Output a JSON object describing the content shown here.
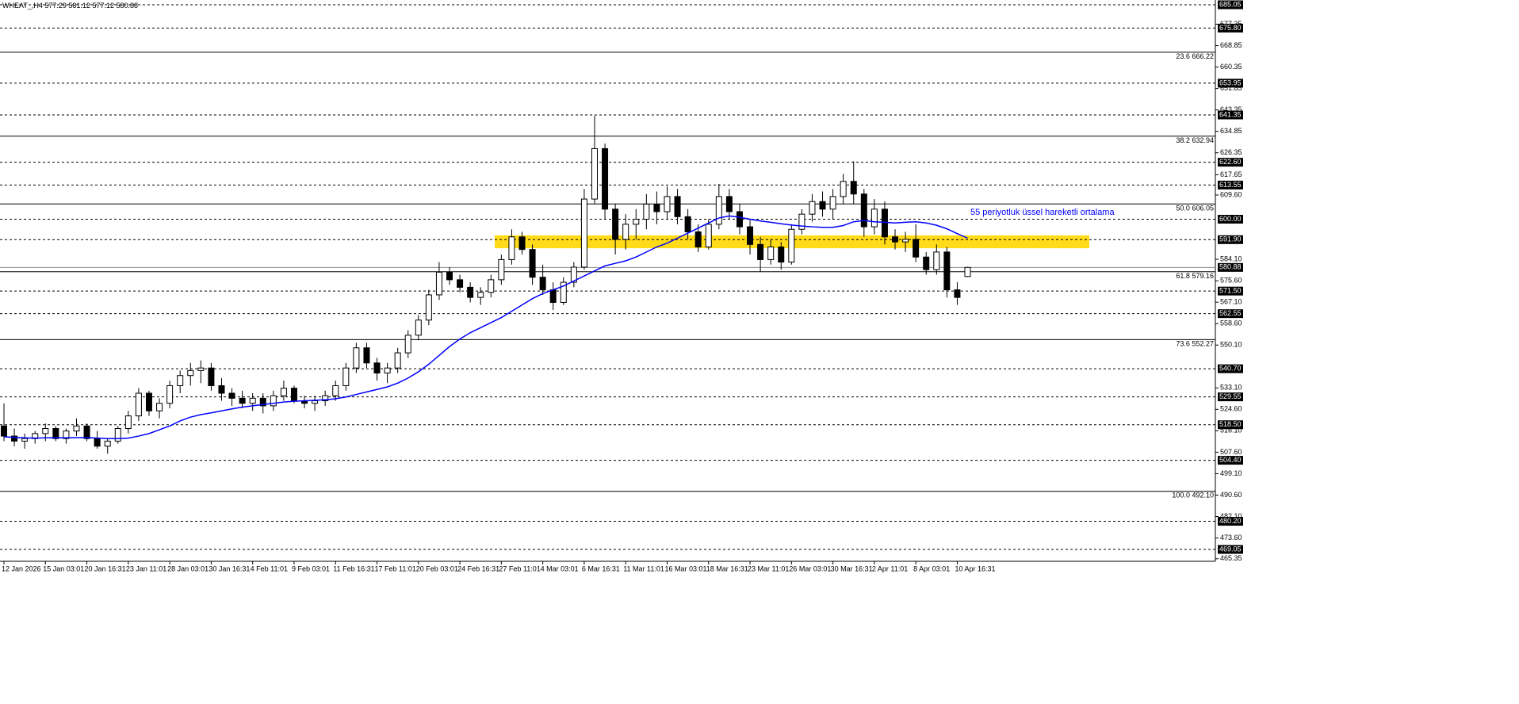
{
  "chart_data": {
    "type": "candlestick",
    "symbol": "WHEAT_,H4",
    "annotation": "55 periyotluk üssel hareketli ortalama",
    "categories": [
      "12 Jan 2026",
      null,
      null,
      null,
      "15 Jan 03:01",
      null,
      null,
      null,
      "20 Jan 16:31",
      null,
      null,
      null,
      "23 Jan 11:01",
      null,
      null,
      null,
      "28 Jan 03:01",
      null,
      null,
      null,
      "30 Jan 16:31",
      null,
      null,
      null,
      "4 Feb 11:01",
      null,
      null,
      null,
      "9 Feb 03:01",
      null,
      null,
      null,
      "11 Feb 16:31",
      null,
      null,
      null,
      "17 Feb 11:01",
      null,
      null,
      null,
      "20 Feb 03:01",
      null,
      null,
      null,
      "24 Feb 16:31",
      null,
      null,
      null,
      "27 Feb 11:01",
      null,
      null,
      null,
      "4 Mar 03:01",
      null,
      null,
      null,
      "6 Mar 16:31",
      null,
      null,
      null,
      "11 Mar 11:01",
      null,
      null,
      null,
      "16 Mar 03:01",
      null,
      null,
      null,
      "18 Mar 16:31",
      null,
      null,
      null,
      "23 Mar 11:01",
      null,
      null,
      null,
      "26 Mar 03:01",
      null,
      null,
      null,
      "30 Mar 16:31",
      null,
      null,
      null,
      "2 Apr 11:01",
      null,
      null,
      null,
      "8 Apr 03:01",
      null,
      null,
      null,
      "10 Apr 16:31",
      null
    ],
    "open": [
      518,
      514,
      512,
      513,
      515,
      517,
      513,
      516,
      518,
      513,
      510,
      512,
      517,
      522,
      531,
      524,
      527,
      534,
      538,
      540,
      541,
      534,
      531,
      529,
      527,
      529,
      526,
      530,
      533,
      528,
      527,
      528,
      530,
      534,
      541,
      549,
      543,
      539,
      541,
      547,
      554,
      560,
      570,
      579,
      576,
      573,
      569,
      571,
      576,
      584,
      593,
      588,
      577,
      572,
      567,
      575,
      581,
      608,
      628,
      604,
      592,
      598,
      600,
      606,
      603,
      609,
      601,
      595,
      589,
      598,
      609,
      603,
      597,
      590,
      584,
      589,
      583,
      596,
      602,
      607,
      604,
      609,
      615,
      610,
      597,
      604,
      593,
      591,
      592,
      585,
      580,
      587,
      572,
      577.29
    ],
    "high": [
      527,
      517,
      515,
      516,
      519,
      518,
      517,
      521,
      519,
      516,
      513,
      518,
      524,
      533,
      532,
      529,
      536,
      540,
      543,
      544,
      543,
      537,
      533,
      532,
      531,
      531,
      532,
      536,
      534,
      530,
      530,
      532,
      536,
      543,
      551,
      551,
      545,
      543,
      549,
      556,
      562,
      572,
      583,
      581,
      578,
      575,
      573,
      578,
      586,
      596,
      595,
      590,
      582,
      575,
      577,
      583,
      612,
      641,
      630,
      606,
      602,
      604,
      610,
      611,
      613,
      612,
      604,
      598,
      600,
      614,
      612,
      606,
      600,
      593,
      592,
      591,
      598,
      604,
      610,
      611,
      612,
      618,
      623,
      612,
      608,
      607,
      596,
      595,
      598,
      587,
      590,
      589,
      575,
      581.12
    ],
    "low": [
      512,
      510,
      509,
      511,
      512,
      512,
      511,
      514,
      512,
      509,
      507,
      511,
      515,
      520,
      522,
      521,
      525,
      531,
      534,
      535,
      532,
      528,
      526,
      525,
      524,
      523,
      524,
      528,
      527,
      525,
      524,
      526,
      528,
      532,
      539,
      541,
      536,
      535,
      539,
      545,
      552,
      558,
      568,
      574,
      571,
      567,
      566,
      569,
      574,
      582,
      586,
      574,
      570,
      564,
      566,
      573,
      580,
      606,
      600,
      586,
      588,
      592,
      596,
      598,
      600,
      598,
      592,
      587,
      588,
      596,
      600,
      594,
      586,
      579,
      582,
      580,
      582,
      594,
      599,
      601,
      600,
      606,
      606,
      593,
      594,
      590,
      588,
      587,
      583,
      578,
      578,
      569,
      566,
      577.12
    ],
    "close": [
      514,
      512,
      513,
      515,
      517,
      513,
      516,
      518,
      513,
      510,
      512,
      517,
      522,
      531,
      524,
      527,
      534,
      538,
      540,
      541,
      534,
      531,
      529,
      527,
      529,
      526,
      530,
      533,
      528,
      527,
      528,
      530,
      534,
      541,
      549,
      543,
      539,
      541,
      547,
      554,
      560,
      570,
      579,
      576,
      573,
      569,
      571,
      576,
      584,
      593,
      588,
      577,
      572,
      567,
      575,
      581,
      608,
      628,
      604,
      592,
      598,
      600,
      606,
      603,
      609,
      601,
      595,
      589,
      598,
      609,
      603,
      597,
      590,
      584,
      589,
      583,
      596,
      602,
      607,
      604,
      609,
      615,
      610,
      597,
      604,
      593,
      591,
      592,
      585,
      580,
      587,
      572,
      569,
      580.88
    ],
    "ema": {
      "color": "#0000ff",
      "values": [
        513.7,
        513.5,
        513.3,
        513.2,
        513.3,
        513.3,
        513.3,
        513.4,
        513.4,
        513.2,
        513.0,
        513.0,
        513.2,
        514.0,
        515,
        516.5,
        518,
        520,
        521.5,
        522.5,
        523.2,
        524,
        524.8,
        525.5,
        526,
        526.5,
        527,
        527.5,
        527.8,
        528,
        528.2,
        528.4,
        528.8,
        529.5,
        530.5,
        531.5,
        532.5,
        533.5,
        535,
        537,
        539.5,
        542.5,
        546,
        549.5,
        552.5,
        555,
        557,
        559,
        561,
        563.5,
        566,
        568.5,
        570.5,
        572,
        573.5,
        575.5,
        577.5,
        579.5,
        581.5,
        582.5,
        583.5,
        585,
        587,
        589,
        590.5,
        592.5,
        594.5,
        596.5,
        598.5,
        600.5,
        601.3,
        600.8,
        600,
        599.3,
        598.8,
        598.2,
        597.7,
        597.3,
        597,
        596.8,
        596.8,
        597.5,
        599,
        599.5,
        599,
        598.8,
        598.5,
        598.8,
        599,
        598.5,
        597.6,
        596.2,
        594.3,
        592.5
      ]
    },
    "zone": {
      "color": "#ffd700",
      "values": [
        588.5,
        593.6
      ]
    },
    "ylim": [
      464.34,
      686.94
    ],
    "yticks": [
      677.35,
      668.85,
      660.35,
      651.85,
      643.35,
      634.85,
      626.35,
      617.65,
      {
        "value": 609.6,
        "label": "609.60"
      },
      {
        "value": 584.1,
        "label": "584.10"
      },
      {
        "value": 575.6,
        "label": "575.60"
      },
      {
        "value": 567.1,
        "label": "567.10"
      },
      {
        "value": 558.6,
        "label": "558.60"
      },
      {
        "value": 550.1,
        "label": "550.10"
      },
      {
        "value": 533.1,
        "label": "533.10"
      },
      {
        "value": 524.6,
        "label": "524.60"
      },
      {
        "value": 516.1,
        "label": "516.10"
      },
      {
        "value": 507.6,
        "label": "507.60"
      },
      {
        "value": 499.1,
        "label": "499.10"
      },
      {
        "value": 490.6,
        "label": "490.60"
      },
      {
        "value": 482.1,
        "label": "482.10"
      },
      {
        "value": 473.6,
        "label": "473.60"
      },
      465.35
    ],
    "levels": [
      685.05,
      {
        "value": 675.8,
        "label": "675.80"
      },
      653.95,
      641.35,
      {
        "value": 622.6,
        "label": "622.60"
      },
      613.55,
      {
        "value": 600,
        "label": "600.00"
      },
      {
        "value": 591.9,
        "label": "591.90"
      },
      {
        "value": 571.5,
        "label": "571.50"
      },
      562.55,
      {
        "value": 540.7,
        "label": "540.70"
      },
      529.55,
      {
        "value": 518.5,
        "label": "518.50"
      },
      {
        "value": 504.4,
        "label": "504.40"
      },
      {
        "value": 480.2,
        "label": "480.20"
      },
      469.05
    ],
    "fib": [
      {
        "level": "23.6",
        "value": 666.22
      },
      {
        "level": "38.2",
        "value": 632.94
      },
      {
        "level": "50.0",
        "value": 606.05
      },
      {
        "level": "61.8",
        "value": 579.16
      },
      {
        "level": "73.6",
        "value": 552.27
      },
      {
        "level": "100.0",
        "value": 492.1,
        "label": "492.10"
      }
    ]
  }
}
